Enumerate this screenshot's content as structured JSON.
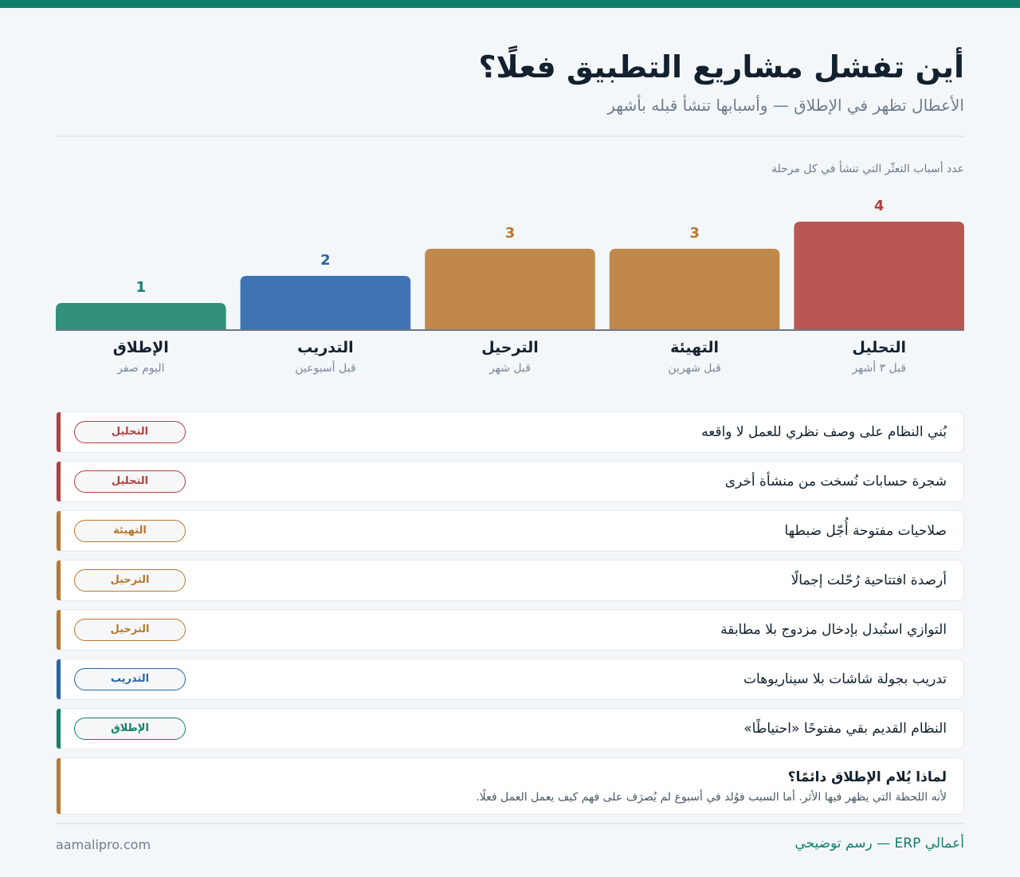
{
  "header": {
    "title": "أين تفشل مشاريع التطبيق فعلًا؟",
    "subtitle": "الأعطال تظهر في الإطلاق — وأسبابها تنشأ قبله بأشهر"
  },
  "chart_data": {
    "type": "bar",
    "title": "عدد أسباب التعثّر التي تنشأ في كل مرحلة",
    "categories": [
      "التحليل",
      "التهيئة",
      "الترحيل",
      "التدريب",
      "الإطلاق"
    ],
    "timing": [
      "قبل ٣ أشهر",
      "قبل شهرين",
      "قبل شهر",
      "قبل أسبوعين",
      "اليوم صفر"
    ],
    "values": [
      4,
      3,
      3,
      2,
      1
    ],
    "ylim": [
      0,
      4
    ],
    "colors": [
      "#b85655",
      "#c0884b",
      "#c0884b",
      "#3e74b3",
      "#33917a"
    ],
    "label_colors": [
      "#b33f3f",
      "#b8782f",
      "#b8782f",
      "#2a64a3",
      "#12806a"
    ]
  },
  "causes": [
    {
      "text": "بُني النظام على وصف نظري للعمل لا واقعه",
      "stage": "التحليل",
      "color": "#b33f3f"
    },
    {
      "text": "شجرة حسابات نُسخت من منشأة أخرى",
      "stage": "التحليل",
      "color": "#b33f3f"
    },
    {
      "text": "صلاحيات مفتوحة أُجّل ضبطها",
      "stage": "التهيئة",
      "color": "#b8782f"
    },
    {
      "text": "أرصدة افتتاحية رُحّلت إجمالًا",
      "stage": "الترحيل",
      "color": "#b8782f"
    },
    {
      "text": "التوازي استُبدل بإدخال مزدوج بلا مطابقة",
      "stage": "الترحيل",
      "color": "#b8782f"
    },
    {
      "text": "تدريب بجولة شاشات بلا سيناريوهات",
      "stage": "التدريب",
      "color": "#2a64a3"
    },
    {
      "text": "النظام القديم بقي مفتوحًا «احتياطًا»",
      "stage": "الإطلاق",
      "color": "#12806a"
    }
  ],
  "note": {
    "title": "لماذا يُلام الإطلاق دائمًا؟",
    "body": "لأنه اللحظة التي يظهر فيها الأثر. أما السبب فوُلد في أسبوع لم يُصرَف على فهم كيف يعمل العمل فعلًا."
  },
  "footer": {
    "brand": "أعمالي ERP — رسم توضيحي",
    "site": "aamalipro.com"
  }
}
